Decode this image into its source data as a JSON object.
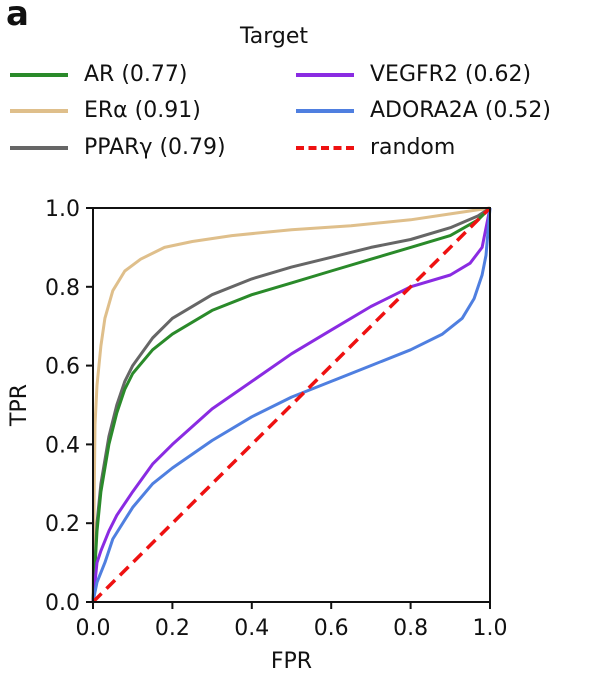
{
  "panel_label": "a",
  "legend": {
    "title": "Target",
    "entries": [
      {
        "label": "AR (0.77)",
        "color": "#2a8a2a",
        "dash": false
      },
      {
        "label": "VEGFR2 (0.62)",
        "color": "#8a2be2",
        "dash": false
      },
      {
        "label": "ERα (0.91)",
        "color": "#dfbf8b",
        "dash": false
      },
      {
        "label": "ADORA2A (0.52)",
        "color": "#4f7fe0",
        "dash": false
      },
      {
        "label": "PPARγ (0.79)",
        "color": "#666666",
        "dash": false
      },
      {
        "label": "random",
        "color": "#ee1111",
        "dash": true
      }
    ]
  },
  "chart_data": {
    "type": "line",
    "xlabel": "FPR",
    "ylabel": "TPR",
    "xlim": [
      0,
      1
    ],
    "ylim": [
      0,
      1
    ],
    "xticks": [
      "0.0",
      "0.2",
      "0.4",
      "0.6",
      "0.8",
      "1.0"
    ],
    "yticks": [
      "0.0",
      "0.2",
      "0.4",
      "0.6",
      "0.8",
      "1.0"
    ],
    "grid": false,
    "series": [
      {
        "name": "ERα (0.91)",
        "color": "#dfbf8b",
        "dash": false,
        "x": [
          0,
          0.005,
          0.01,
          0.02,
          0.03,
          0.05,
          0.08,
          0.12,
          0.18,
          0.25,
          0.35,
          0.5,
          0.65,
          0.8,
          0.9,
          1.0
        ],
        "y": [
          0,
          0.45,
          0.55,
          0.65,
          0.72,
          0.79,
          0.84,
          0.87,
          0.9,
          0.915,
          0.93,
          0.945,
          0.955,
          0.97,
          0.985,
          1.0
        ]
      },
      {
        "name": "PPARγ (0.79)",
        "color": "#666666",
        "dash": false,
        "x": [
          0,
          0.01,
          0.02,
          0.04,
          0.06,
          0.08,
          0.1,
          0.15,
          0.2,
          0.3,
          0.4,
          0.5,
          0.6,
          0.7,
          0.8,
          0.9,
          0.97,
          1.0
        ],
        "y": [
          0,
          0.2,
          0.3,
          0.42,
          0.5,
          0.56,
          0.6,
          0.67,
          0.72,
          0.78,
          0.82,
          0.85,
          0.875,
          0.9,
          0.92,
          0.95,
          0.98,
          1.0
        ]
      },
      {
        "name": "AR (0.77)",
        "color": "#2a8a2a",
        "dash": false,
        "x": [
          0,
          0.01,
          0.02,
          0.04,
          0.06,
          0.08,
          0.1,
          0.15,
          0.2,
          0.3,
          0.4,
          0.5,
          0.6,
          0.7,
          0.8,
          0.9,
          0.97,
          1.0
        ],
        "y": [
          0,
          0.18,
          0.28,
          0.4,
          0.48,
          0.54,
          0.58,
          0.64,
          0.68,
          0.74,
          0.78,
          0.81,
          0.84,
          0.87,
          0.9,
          0.93,
          0.97,
          1.0
        ]
      },
      {
        "name": "VEGFR2 (0.62)",
        "color": "#8a2be2",
        "dash": false,
        "x": [
          0,
          0.01,
          0.02,
          0.04,
          0.06,
          0.1,
          0.15,
          0.2,
          0.3,
          0.4,
          0.5,
          0.6,
          0.7,
          0.8,
          0.9,
          0.95,
          0.98,
          1.0
        ],
        "y": [
          0,
          0.1,
          0.13,
          0.18,
          0.22,
          0.28,
          0.35,
          0.4,
          0.49,
          0.56,
          0.63,
          0.69,
          0.75,
          0.8,
          0.83,
          0.86,
          0.9,
          1.0
        ]
      },
      {
        "name": "ADORA2A (0.52)",
        "color": "#4f7fe0",
        "dash": false,
        "x": [
          0,
          0.01,
          0.03,
          0.05,
          0.1,
          0.15,
          0.2,
          0.3,
          0.4,
          0.5,
          0.6,
          0.7,
          0.8,
          0.88,
          0.93,
          0.96,
          0.98,
          0.99,
          1.0
        ],
        "y": [
          0,
          0.05,
          0.1,
          0.16,
          0.24,
          0.3,
          0.34,
          0.41,
          0.47,
          0.52,
          0.56,
          0.6,
          0.64,
          0.68,
          0.72,
          0.77,
          0.83,
          0.88,
          1.0
        ]
      },
      {
        "name": "random",
        "color": "#ee1111",
        "dash": true,
        "x": [
          0,
          1
        ],
        "y": [
          0,
          1
        ]
      }
    ]
  }
}
